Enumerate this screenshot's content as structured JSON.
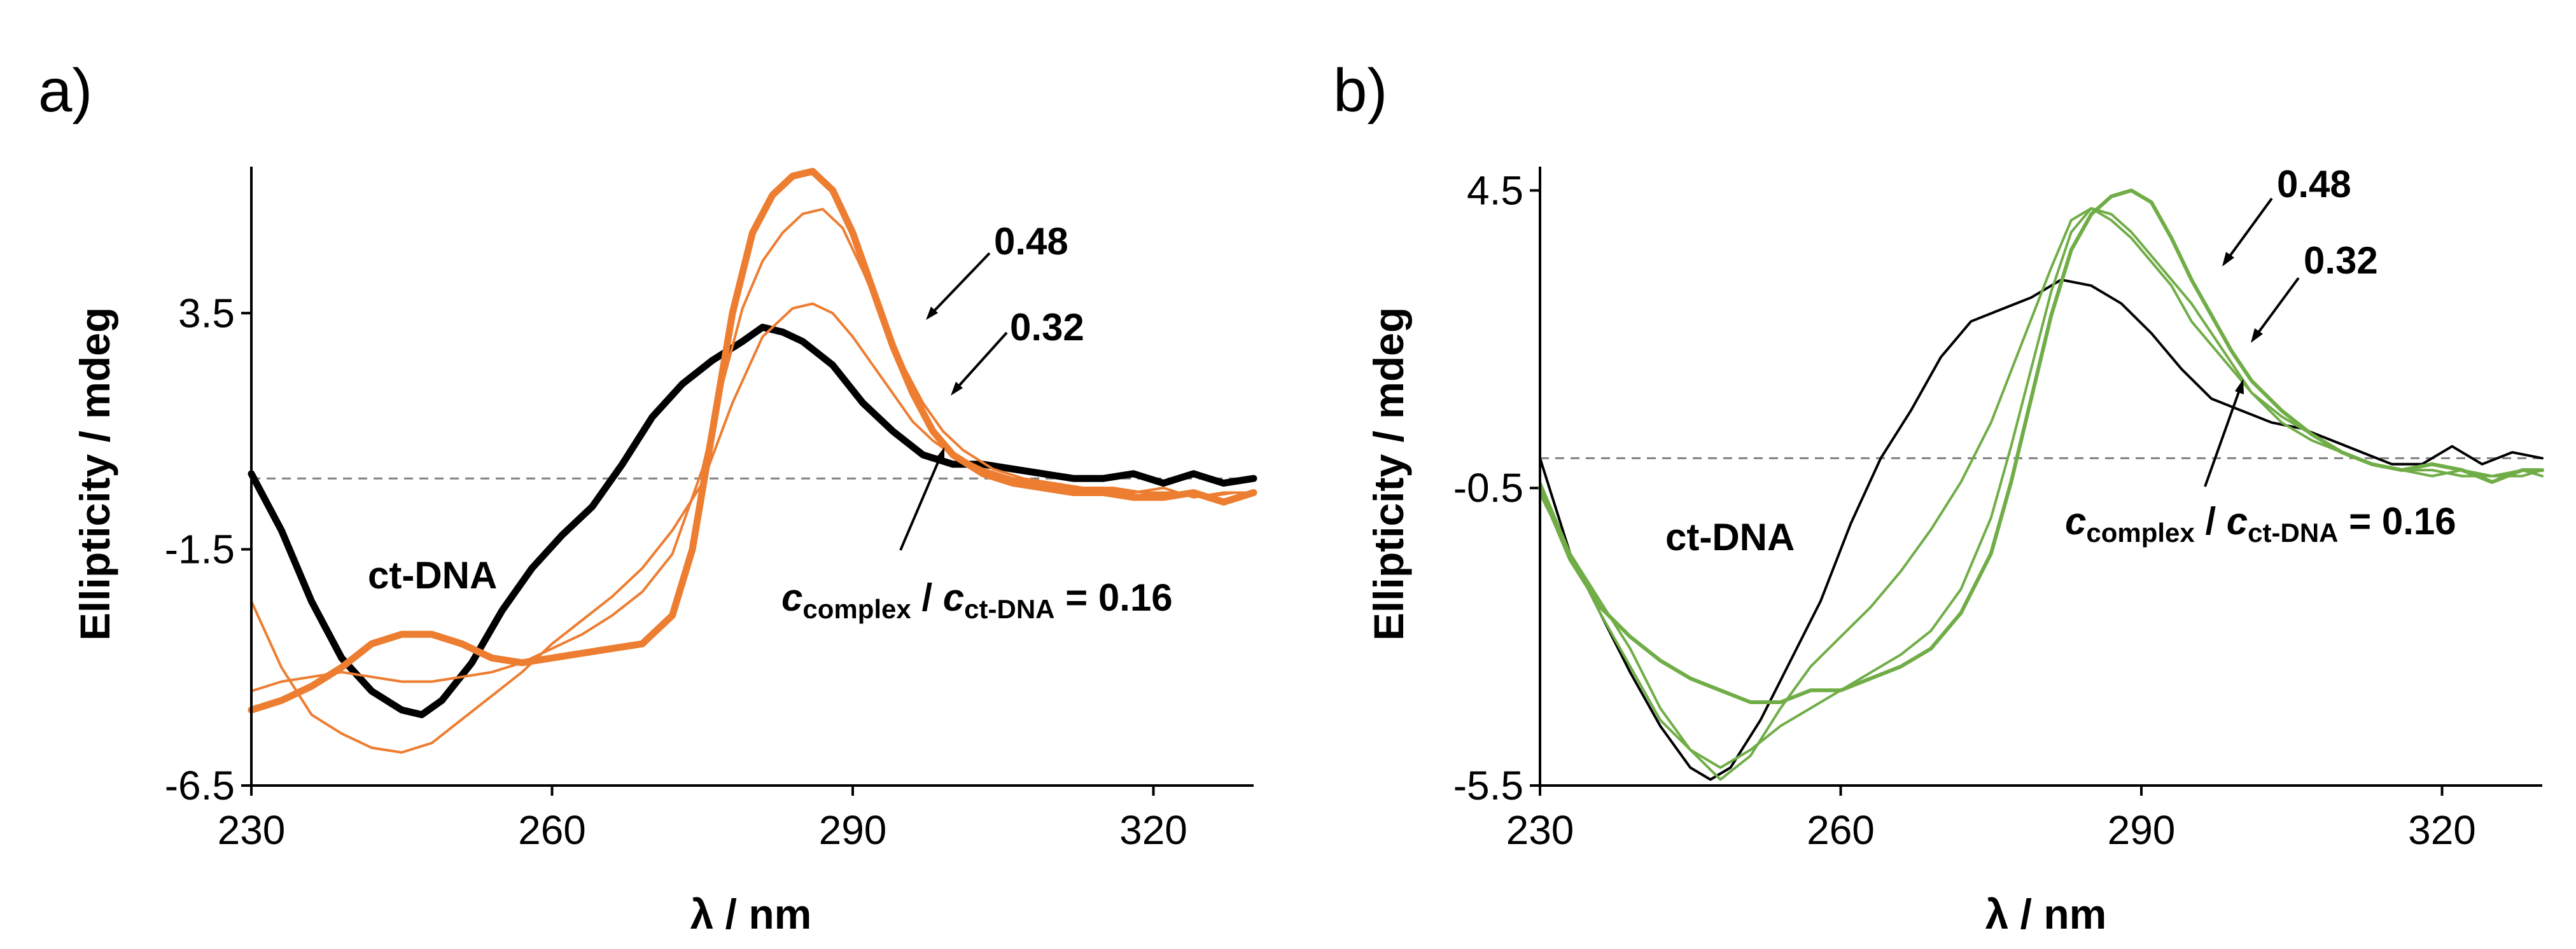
{
  "chart_data": [
    {
      "panel": "a)",
      "type": "line",
      "xlabel": "λ / nm",
      "ylabel": "Ellipticity / mdeg",
      "xlim": [
        230,
        330
      ],
      "ylim": [
        -6.5,
        6.6
      ],
      "xticks": [
        230,
        260,
        290,
        320
      ],
      "yticks": [
        -6.5,
        -1.5,
        3.5
      ],
      "reference_line": {
        "y": 0,
        "style": "dashed",
        "color": "#808080"
      },
      "annotations": {
        "base_label": "ct-DNA",
        "ratio_c1": "c",
        "ratio_sub1": "complex",
        "ratio_mid": " / ",
        "ratio_c2": "c",
        "ratio_sub2": "ct-DNA",
        "ratio_value": " = 0.16",
        "label_048": "0.48",
        "label_032": "0.32"
      },
      "series": [
        {
          "color": "#000000",
          "width": "thick",
          "x": [
            230,
            233,
            236,
            239,
            242,
            245,
            247,
            249,
            252,
            255,
            258,
            261,
            264,
            267,
            270,
            273,
            276,
            279,
            281,
            283,
            285,
            288,
            291,
            294,
            297,
            300,
            303,
            306,
            309,
            312,
            315,
            318,
            321,
            324,
            327,
            330
          ],
          "y": [
            0.1,
            -1.1,
            -2.6,
            -3.8,
            -4.5,
            -4.9,
            -5.0,
            -4.7,
            -3.9,
            -2.8,
            -1.9,
            -1.2,
            -0.6,
            0.3,
            1.3,
            2.0,
            2.5,
            2.9,
            3.2,
            3.1,
            2.9,
            2.4,
            1.6,
            1.0,
            0.5,
            0.3,
            0.3,
            0.2,
            0.1,
            0.0,
            0.0,
            0.1,
            -0.1,
            0.1,
            -0.1,
            0.0
          ]
        },
        {
          "color": "#ED7D31",
          "width": "thin",
          "x": [
            230,
            233,
            236,
            239,
            242,
            245,
            248,
            251,
            254,
            257,
            260,
            263,
            266,
            269,
            272,
            275,
            278,
            281,
            284,
            286,
            288,
            290,
            292,
            294,
            296,
            298,
            300,
            303,
            306,
            309,
            312,
            315,
            318,
            321,
            324,
            327,
            330
          ],
          "y": [
            -2.6,
            -4.0,
            -5.0,
            -5.4,
            -5.7,
            -5.8,
            -5.6,
            -5.1,
            -4.6,
            -4.1,
            -3.5,
            -3.0,
            -2.5,
            -1.9,
            -1.1,
            -0.1,
            1.6,
            3.0,
            3.6,
            3.7,
            3.5,
            3.0,
            2.4,
            1.8,
            1.2,
            0.8,
            0.5,
            0.2,
            0.0,
            -0.1,
            -0.2,
            -0.2,
            -0.3,
            -0.2,
            -0.4,
            -0.3,
            -0.3
          ]
        },
        {
          "color": "#ED7D31",
          "width": "thin",
          "x": [
            230,
            233,
            236,
            239,
            242,
            245,
            248,
            251,
            254,
            257,
            260,
            263,
            266,
            269,
            272,
            275,
            277,
            279,
            281,
            283,
            285,
            287,
            289,
            291,
            293,
            295,
            297,
            299,
            301,
            304,
            307,
            310,
            313,
            316,
            319,
            322,
            325,
            328,
            330
          ],
          "y": [
            -4.5,
            -4.3,
            -4.2,
            -4.1,
            -4.2,
            -4.3,
            -4.3,
            -4.2,
            -4.1,
            -3.9,
            -3.6,
            -3.3,
            -2.9,
            -2.4,
            -1.6,
            0.2,
            2.0,
            3.6,
            4.6,
            5.2,
            5.6,
            5.7,
            5.3,
            4.4,
            3.4,
            2.4,
            1.6,
            1.0,
            0.6,
            0.2,
            0.0,
            -0.1,
            -0.2,
            -0.2,
            -0.3,
            -0.3,
            -0.4,
            -0.3,
            -0.3
          ]
        },
        {
          "color": "#ED7D31",
          "width": "thick",
          "x": [
            230,
            233,
            236,
            239,
            242,
            245,
            248,
            251,
            254,
            257,
            260,
            263,
            266,
            269,
            272,
            274,
            276,
            278,
            280,
            282,
            284,
            286,
            288,
            290,
            292,
            294,
            296,
            298,
            300,
            303,
            306,
            309,
            312,
            315,
            318,
            321,
            324,
            327,
            330
          ],
          "y": [
            -4.9,
            -4.7,
            -4.4,
            -4.0,
            -3.5,
            -3.3,
            -3.3,
            -3.5,
            -3.8,
            -3.9,
            -3.8,
            -3.7,
            -3.6,
            -3.5,
            -2.9,
            -1.5,
            1.0,
            3.5,
            5.2,
            6.0,
            6.4,
            6.5,
            6.1,
            5.2,
            4.0,
            2.8,
            1.8,
            1.0,
            0.5,
            0.1,
            -0.1,
            -0.2,
            -0.3,
            -0.3,
            -0.4,
            -0.4,
            -0.3,
            -0.5,
            -0.3
          ]
        }
      ]
    },
    {
      "panel": "b)",
      "type": "line",
      "xlabel": "λ / nm",
      "ylabel": "Ellipticity / mdeg",
      "xlim": [
        230,
        330
      ],
      "ylim": [
        -5.5,
        4.9
      ],
      "xticks": [
        230,
        260,
        290,
        320
      ],
      "yticks": [
        -5.5,
        -0.5,
        4.5
      ],
      "reference_line": {
        "y": 0,
        "style": "dashed",
        "color": "#808080"
      },
      "annotations": {
        "base_label": "ct-DNA",
        "ratio_c1": "c",
        "ratio_sub1": "complex",
        "ratio_mid": " / ",
        "ratio_c2": "c",
        "ratio_sub2": "ct-DNA",
        "ratio_value": " = 0.16",
        "label_048": "0.48",
        "label_032": "0.32"
      },
      "series": [
        {
          "color": "#000000",
          "width": "thin",
          "x": [
            230,
            233,
            236,
            239,
            242,
            245,
            247,
            249,
            252,
            255,
            258,
            261,
            264,
            267,
            270,
            273,
            276,
            279,
            282,
            285,
            288,
            291,
            294,
            297,
            300,
            303,
            306,
            309,
            312,
            315,
            318,
            321,
            324,
            327,
            330
          ],
          "y": [
            0.0,
            -1.6,
            -2.6,
            -3.6,
            -4.5,
            -5.2,
            -5.4,
            -5.2,
            -4.4,
            -3.4,
            -2.4,
            -1.1,
            0.0,
            0.8,
            1.7,
            2.3,
            2.5,
            2.7,
            3.0,
            2.9,
            2.6,
            2.1,
            1.5,
            1.0,
            0.8,
            0.6,
            0.5,
            0.3,
            0.1,
            -0.1,
            -0.1,
            0.2,
            -0.1,
            0.1,
            0.0
          ]
        },
        {
          "color": "#70AD47",
          "width": "thin",
          "x": [
            230,
            233,
            236,
            239,
            242,
            245,
            248,
            251,
            254,
            257,
            260,
            263,
            266,
            269,
            272,
            275,
            278,
            281,
            283,
            285,
            287,
            289,
            291,
            293,
            295,
            297,
            299,
            301,
            304,
            307,
            310,
            313,
            316,
            319,
            322,
            325,
            328,
            330
          ],
          "y": [
            -0.6,
            -1.6,
            -2.4,
            -3.2,
            -4.2,
            -4.9,
            -5.4,
            -5.0,
            -4.2,
            -3.5,
            -3.0,
            -2.5,
            -1.9,
            -1.2,
            -0.4,
            0.6,
            1.9,
            3.2,
            4.0,
            4.2,
            4.0,
            3.7,
            3.3,
            2.9,
            2.3,
            1.9,
            1.5,
            1.1,
            0.6,
            0.3,
            0.1,
            -0.1,
            -0.2,
            -0.3,
            -0.2,
            -0.3,
            -0.3,
            -0.2
          ]
        },
        {
          "color": "#70AD47",
          "width": "thin",
          "x": [
            230,
            233,
            236,
            239,
            242,
            245,
            248,
            251,
            254,
            257,
            260,
            263,
            266,
            269,
            272,
            275,
            277,
            279,
            281,
            283,
            285,
            287,
            289,
            291,
            293,
            295,
            297,
            299,
            301,
            304,
            307,
            310,
            313,
            316,
            319,
            322,
            325,
            328,
            330
          ],
          "y": [
            -0.4,
            -1.6,
            -2.6,
            -3.5,
            -4.4,
            -4.9,
            -5.2,
            -4.9,
            -4.5,
            -4.2,
            -3.9,
            -3.6,
            -3.3,
            -2.9,
            -2.2,
            -1.0,
            0.2,
            1.5,
            2.8,
            3.8,
            4.2,
            4.1,
            3.8,
            3.4,
            3.0,
            2.6,
            2.1,
            1.6,
            1.1,
            0.7,
            0.4,
            0.1,
            -0.1,
            -0.2,
            -0.2,
            -0.3,
            -0.3,
            -0.2,
            -0.3
          ]
        },
        {
          "color": "#70AD47",
          "width": "thick",
          "x": [
            230,
            233,
            236,
            239,
            242,
            245,
            248,
            251,
            254,
            257,
            260,
            263,
            266,
            269,
            272,
            275,
            277,
            279,
            281,
            283,
            285,
            287,
            289,
            291,
            293,
            295,
            297,
            299,
            301,
            304,
            307,
            310,
            313,
            316,
            319,
            322,
            325,
            328,
            330
          ],
          "y": [
            -0.5,
            -1.7,
            -2.5,
            -3.0,
            -3.4,
            -3.7,
            -3.9,
            -4.1,
            -4.1,
            -3.9,
            -3.9,
            -3.7,
            -3.5,
            -3.2,
            -2.6,
            -1.6,
            -0.4,
            1.0,
            2.4,
            3.5,
            4.1,
            4.4,
            4.5,
            4.3,
            3.7,
            3.0,
            2.4,
            1.8,
            1.3,
            0.8,
            0.4,
            0.1,
            -0.1,
            -0.2,
            -0.1,
            -0.2,
            -0.4,
            -0.2,
            -0.2
          ]
        }
      ]
    }
  ]
}
